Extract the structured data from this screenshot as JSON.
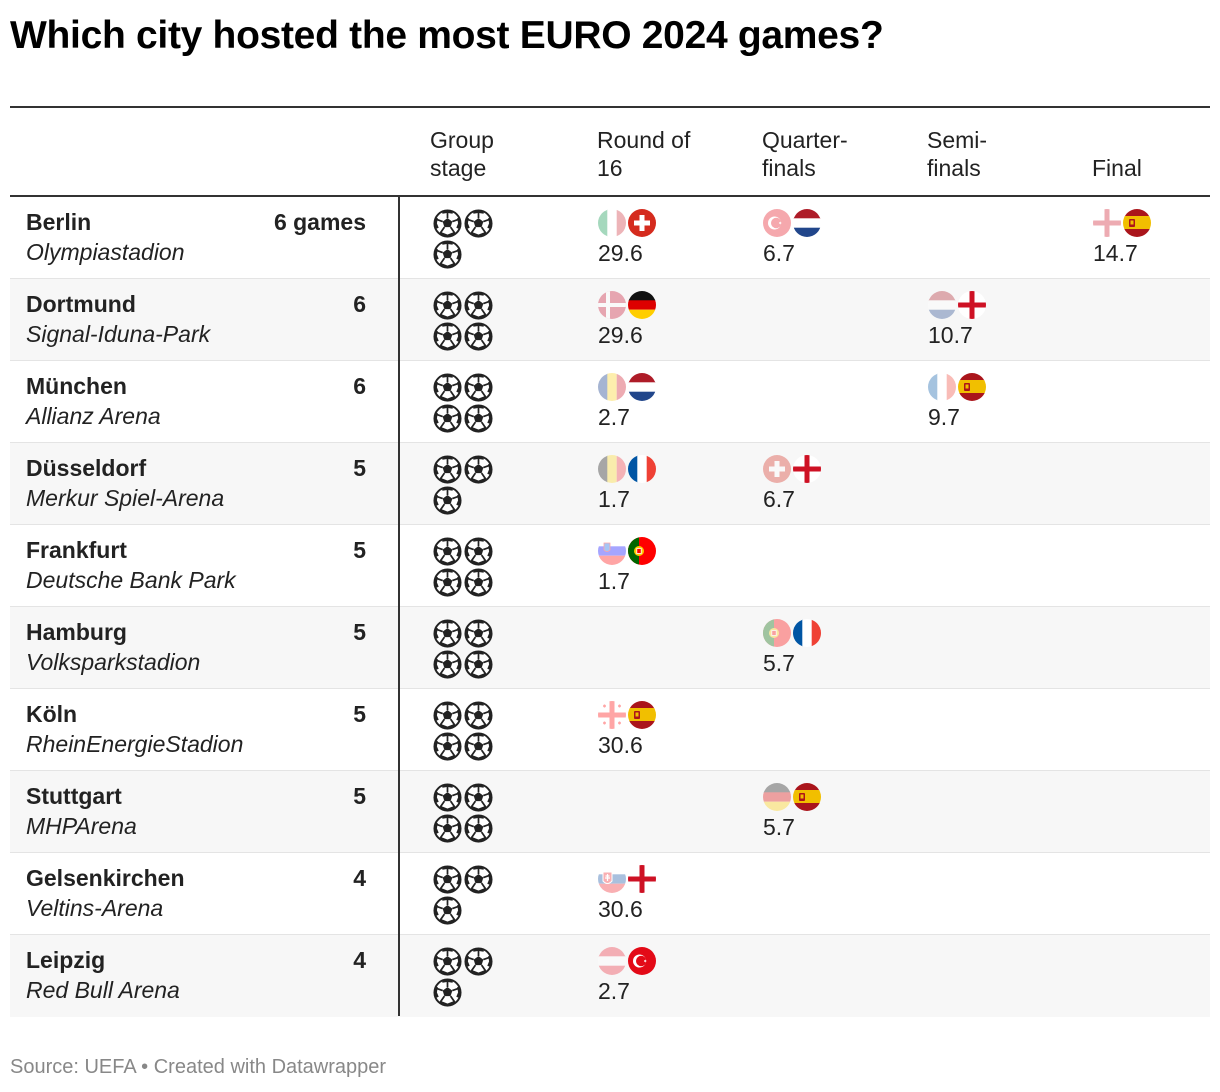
{
  "title": "Which city hosted the most EURO 2024 games?",
  "source": "Source: UEFA • Created with Datawrapper",
  "chart_data": {
    "type": "table",
    "columns": [
      {
        "key": "group",
        "label": "Group stage"
      },
      {
        "key": "r16",
        "label": "Round of 16"
      },
      {
        "key": "qf",
        "label": "Quarter-finals"
      },
      {
        "key": "sf",
        "label": "Semi-finals"
      },
      {
        "key": "final",
        "label": "Final"
      }
    ],
    "rows": [
      {
        "city": "Berlin",
        "stadium": "Olympiastadion",
        "games": "6 games",
        "group_games": 3,
        "r16": {
          "teams": [
            "italy",
            "switzerland"
          ],
          "loser": "italy",
          "value": "29.6"
        },
        "qf": {
          "teams": [
            "turkey",
            "netherlands"
          ],
          "loser": "turkey",
          "value": "6.7"
        },
        "final": {
          "teams": [
            "england",
            "spain"
          ],
          "loser": "england",
          "value": "14.7"
        }
      },
      {
        "city": "Dortmund",
        "stadium": "Signal-Iduna-Park",
        "games": "6",
        "group_games": 4,
        "r16": {
          "teams": [
            "denmark",
            "germany"
          ],
          "loser": "denmark",
          "value": "29.6"
        },
        "sf": {
          "teams": [
            "netherlands",
            "england"
          ],
          "loser": "netherlands",
          "value": "10.7"
        }
      },
      {
        "city": "München",
        "stadium": "Allianz Arena",
        "games": "6",
        "group_games": 4,
        "r16": {
          "teams": [
            "romania",
            "netherlands"
          ],
          "loser": "romania",
          "value": "2.7"
        },
        "sf": {
          "teams": [
            "france",
            "spain"
          ],
          "loser": "france",
          "value": "9.7"
        }
      },
      {
        "city": "Düsseldorf",
        "stadium": "Merkur Spiel-Arena",
        "games": "5",
        "group_games": 3,
        "r16": {
          "teams": [
            "belgium",
            "france"
          ],
          "loser": "belgium",
          "value": "1.7"
        },
        "qf": {
          "teams": [
            "switzerland",
            "england"
          ],
          "loser": "switzerland",
          "value": "6.7"
        }
      },
      {
        "city": "Frankfurt",
        "stadium": "Deutsche Bank Park",
        "games": "5",
        "group_games": 4,
        "r16": {
          "teams": [
            "slovenia",
            "portugal"
          ],
          "loser": "slovenia",
          "value": "1.7"
        }
      },
      {
        "city": "Hamburg",
        "stadium": "Volksparkstadion",
        "games": "5",
        "group_games": 4,
        "qf": {
          "teams": [
            "portugal",
            "france"
          ],
          "loser": "portugal",
          "value": "5.7"
        }
      },
      {
        "city": "Köln",
        "stadium": "RheinEnergieStadion",
        "games": "5",
        "group_games": 4,
        "r16": {
          "teams": [
            "georgia",
            "spain"
          ],
          "loser": "georgia",
          "value": "30.6"
        }
      },
      {
        "city": "Stuttgart",
        "stadium": "MHPArena",
        "games": "5",
        "group_games": 4,
        "qf": {
          "teams": [
            "germany",
            "spain"
          ],
          "loser": "germany",
          "value": "5.7"
        }
      },
      {
        "city": "Gelsenkirchen",
        "stadium": "Veltins-Arena",
        "games": "4",
        "group_games": 3,
        "r16": {
          "teams": [
            "slovakia",
            "england"
          ],
          "loser": "slovakia",
          "value": "30.6"
        }
      },
      {
        "city": "Leipzig",
        "stadium": "Red Bull Arena",
        "games": "4",
        "group_games": 3,
        "r16": {
          "teams": [
            "austria",
            "turkey"
          ],
          "loser": "austria",
          "value": "2.7"
        }
      }
    ]
  }
}
